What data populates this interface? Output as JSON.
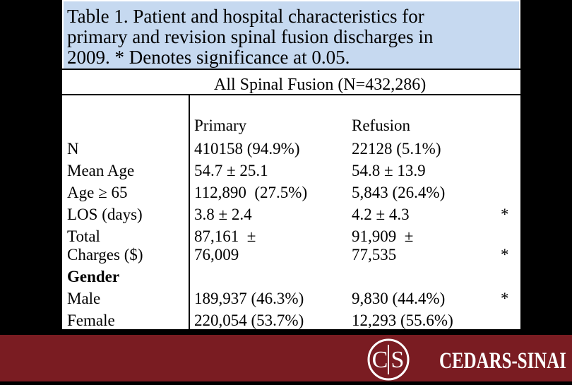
{
  "title_lines": [
    "Table 1. Patient and hospital characteristics for",
    "primary and revision spinal fusion discharges in",
    "2009. * Denotes significance at 0.05."
  ],
  "table": {
    "span_header": "All Spinal Fusion (N=432,286)",
    "columns": [
      "Primary",
      "Refusion"
    ],
    "rows": [
      {
        "label": [
          "N"
        ],
        "primary": [
          "410158 (94.9%)"
        ],
        "refusion": [
          "22128 (5.1%)"
        ]
      },
      {
        "label": [
          "Mean Age"
        ],
        "primary": [
          "54.7 ± 25.1"
        ],
        "refusion": [
          "54.8 ± 13.9"
        ]
      },
      {
        "label": [
          "Age ≥ 65"
        ],
        "primary": [
          "112,890  (27.5%)"
        ],
        "refusion": [
          "5,843 (26.4%)"
        ]
      },
      {
        "label": [
          "LOS (days)"
        ],
        "primary": [
          "3.8 ± 2.4"
        ],
        "refusion": [
          "4.2 ± 4.3"
        ],
        "sig": "*"
      },
      {
        "label": [
          "Total",
          "Charges ($)"
        ],
        "primary": [
          "87,161  ±",
          "76,009"
        ],
        "refusion": [
          "91,909  ±",
          "77,535"
        ],
        "sig": "*"
      },
      {
        "section": "Gender"
      },
      {
        "label": [
          "Male"
        ],
        "primary": [
          "189,937 (46.3%)"
        ],
        "refusion": [
          "9,830 (44.4%)"
        ],
        "sig": "*"
      },
      {
        "label": [
          "Female"
        ],
        "primary": [
          "220,054 (53.7%)"
        ],
        "refusion": [
          "12,293 (55.6%)"
        ]
      }
    ]
  },
  "logo": {
    "monogram_left": "C",
    "monogram_right": "S",
    "name": "CEDARS-SINAI"
  }
}
